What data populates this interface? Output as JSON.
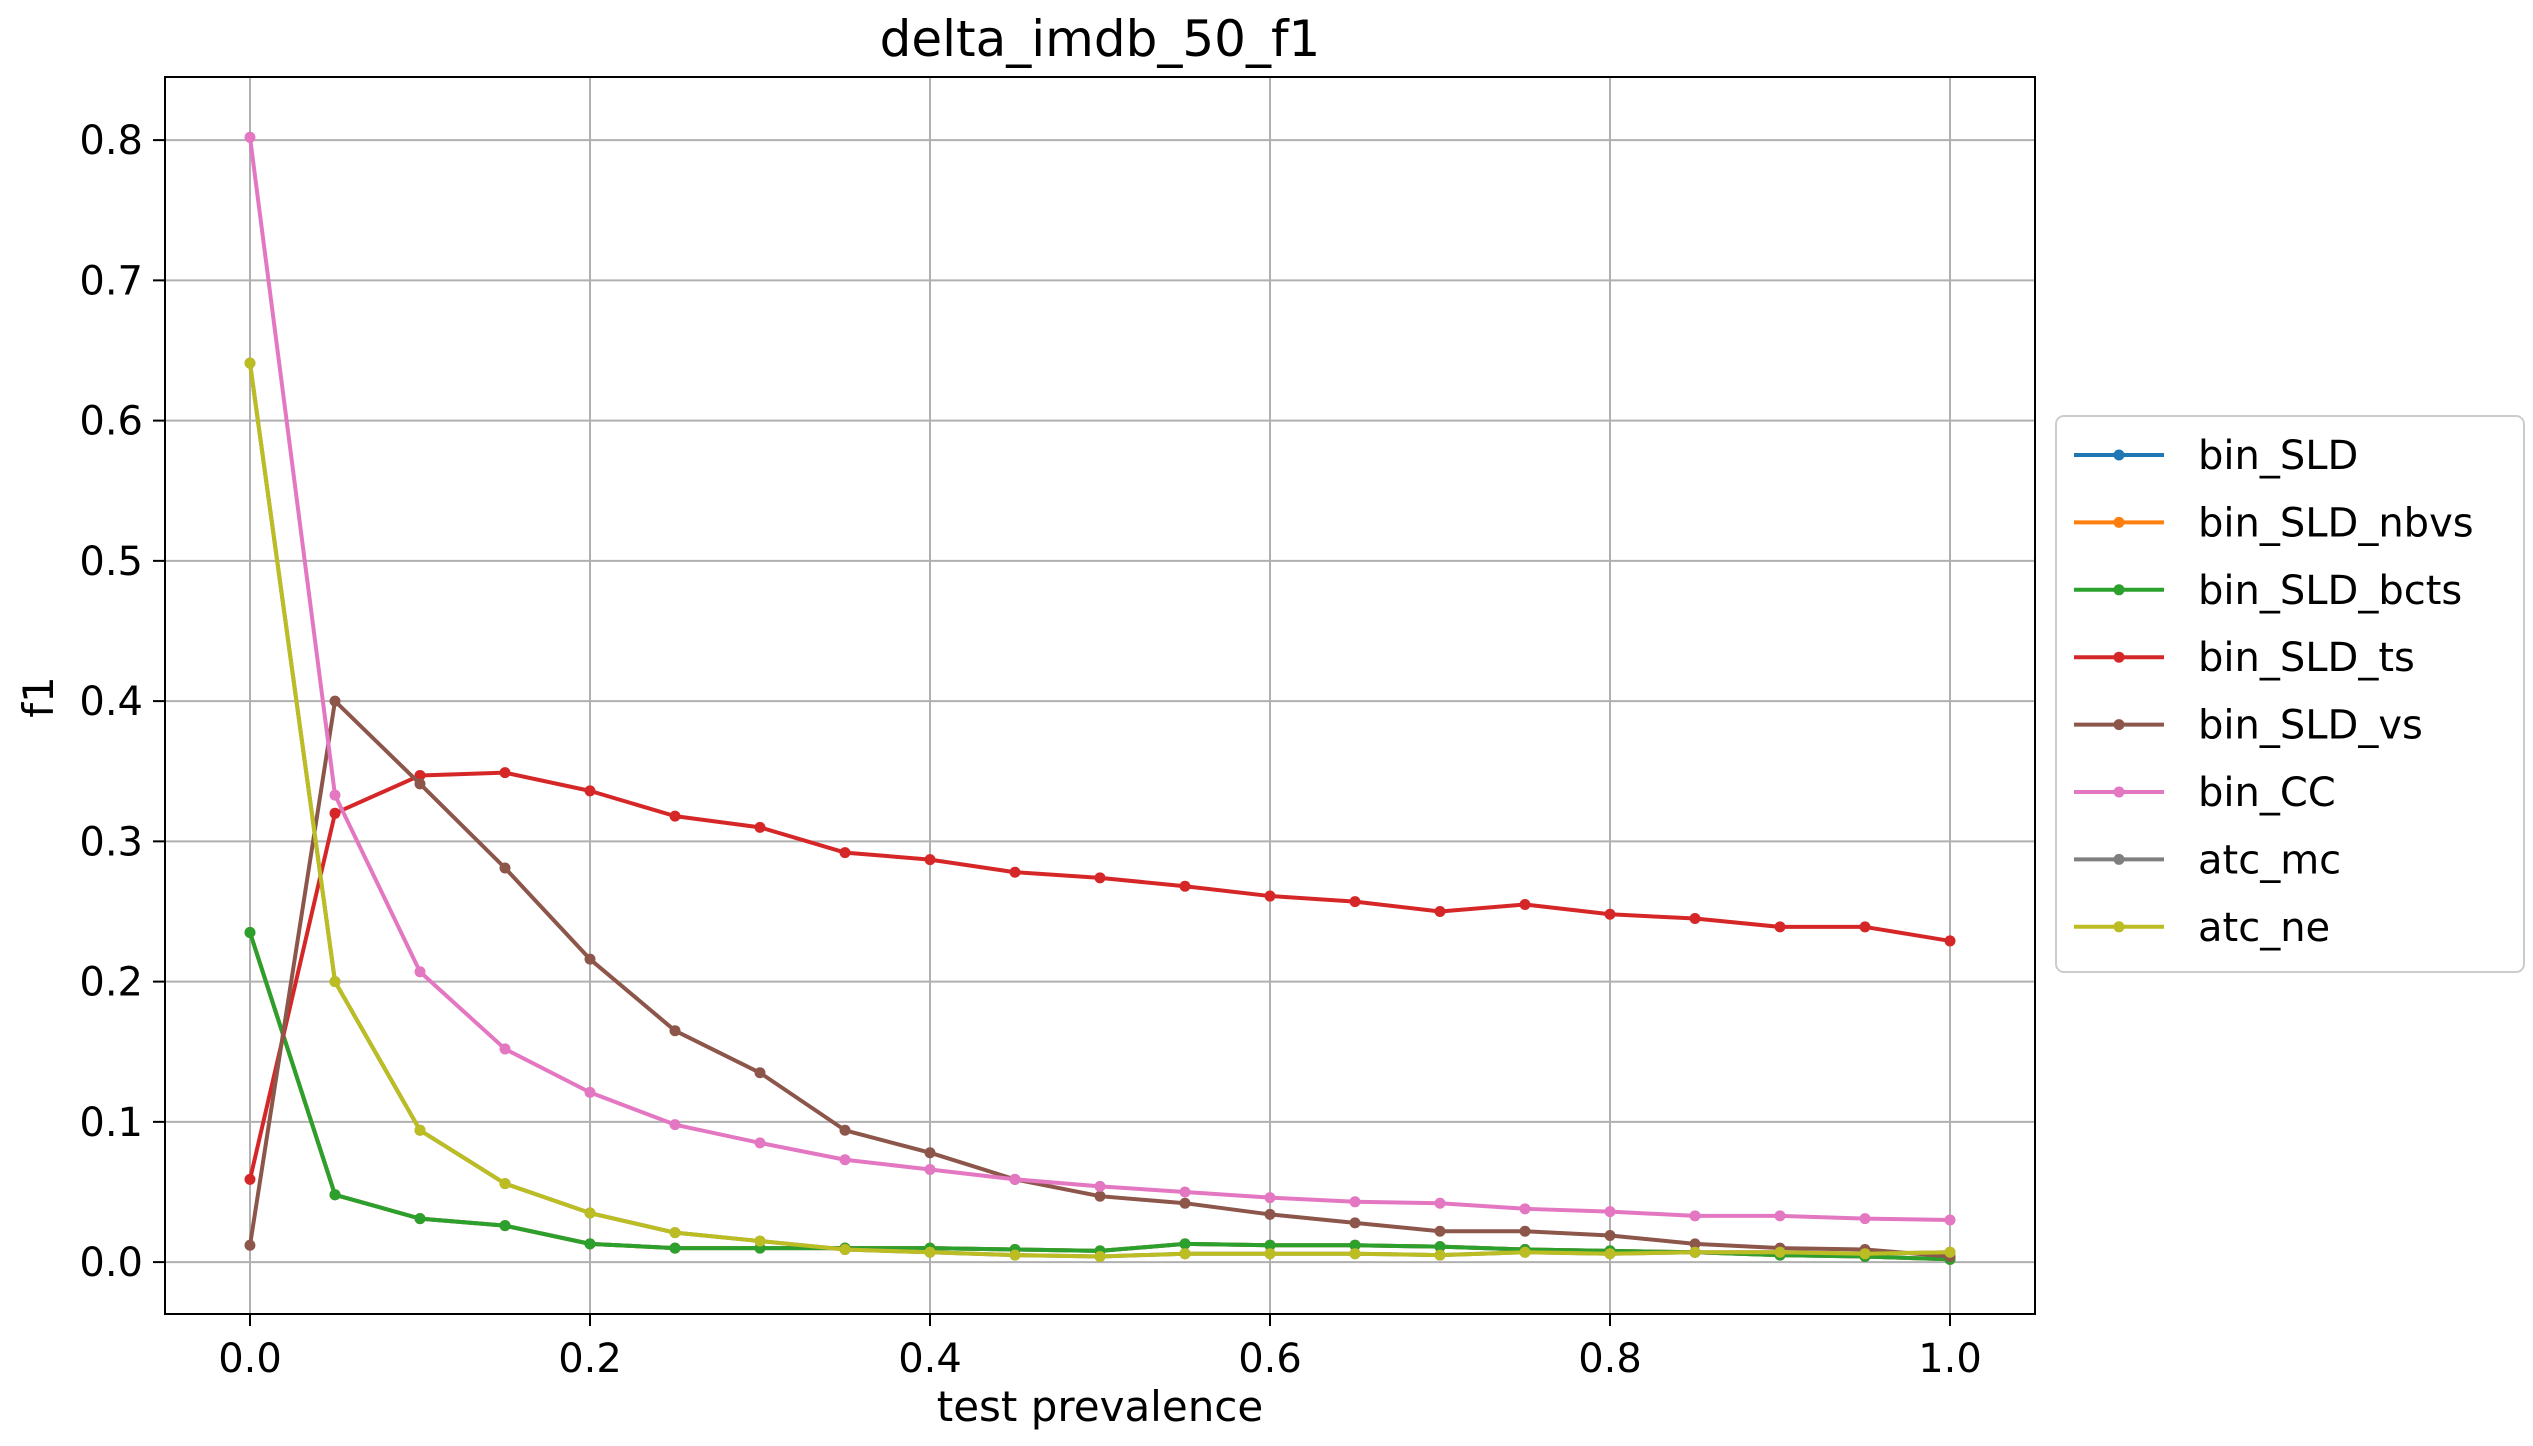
{
  "chart_data": {
    "type": "line",
    "title": "delta_imdb_50_f1",
    "xlabel": "test prevalence",
    "ylabel": "f1",
    "xlim": [
      -0.05,
      1.05
    ],
    "ylim": [
      -0.037,
      0.845
    ],
    "xticks": [
      0.0,
      0.2,
      0.4,
      0.6,
      0.8,
      1.0
    ],
    "xtick_labels": [
      "0.0",
      "0.2",
      "0.4",
      "0.6",
      "0.8",
      "1.0"
    ],
    "yticks": [
      0.0,
      0.1,
      0.2,
      0.3,
      0.4,
      0.5,
      0.6,
      0.7,
      0.8
    ],
    "ytick_labels": [
      "0.0",
      "0.1",
      "0.2",
      "0.3",
      "0.4",
      "0.5",
      "0.6",
      "0.7",
      "0.8"
    ],
    "grid": true,
    "legend_position": "outside-right",
    "x": [
      0.0,
      0.05,
      0.1,
      0.15,
      0.2,
      0.25,
      0.3,
      0.35,
      0.4,
      0.45,
      0.5,
      0.55,
      0.6,
      0.65,
      0.7,
      0.75,
      0.8,
      0.85,
      0.9,
      0.95,
      1.0
    ],
    "series": [
      {
        "name": "bin_SLD",
        "color": "#1f77b4",
        "values": [
          0.235,
          0.048,
          0.031,
          0.026,
          0.013,
          0.01,
          0.01,
          0.01,
          0.01,
          0.009,
          0.008,
          0.013,
          0.012,
          0.012,
          0.011,
          0.009,
          0.008,
          0.007,
          0.005,
          0.004,
          0.002
        ]
      },
      {
        "name": "bin_SLD_nbvs",
        "color": "#ff7f0e",
        "values": [
          0.235,
          0.048,
          0.031,
          0.026,
          0.013,
          0.01,
          0.01,
          0.01,
          0.01,
          0.009,
          0.008,
          0.013,
          0.012,
          0.012,
          0.011,
          0.009,
          0.008,
          0.007,
          0.005,
          0.004,
          0.002
        ]
      },
      {
        "name": "bin_SLD_bcts",
        "color": "#2ca02c",
        "values": [
          0.235,
          0.048,
          0.031,
          0.026,
          0.013,
          0.01,
          0.01,
          0.01,
          0.01,
          0.009,
          0.008,
          0.013,
          0.012,
          0.012,
          0.011,
          0.009,
          0.008,
          0.007,
          0.005,
          0.004,
          0.002
        ]
      },
      {
        "name": "bin_SLD_ts",
        "color": "#d62728",
        "values": [
          0.059,
          0.32,
          0.347,
          0.349,
          0.336,
          0.318,
          0.31,
          0.292,
          0.287,
          0.278,
          0.274,
          0.268,
          0.261,
          0.257,
          0.25,
          0.255,
          0.248,
          0.245,
          0.239,
          0.239,
          0.229
        ]
      },
      {
        "name": "bin_SLD_vs",
        "color": "#8c564b",
        "values": [
          0.012,
          0.4,
          0.341,
          0.281,
          0.216,
          0.165,
          0.135,
          0.094,
          0.078,
          0.059,
          0.047,
          0.042,
          0.034,
          0.028,
          0.022,
          0.022,
          0.019,
          0.013,
          0.01,
          0.009,
          0.004
        ]
      },
      {
        "name": "bin_CC",
        "color": "#e377c2",
        "values": [
          0.802,
          0.333,
          0.207,
          0.152,
          0.121,
          0.098,
          0.085,
          0.073,
          0.066,
          0.059,
          0.054,
          0.05,
          0.046,
          0.043,
          0.042,
          0.038,
          0.036,
          0.033,
          0.033,
          0.031,
          0.03
        ]
      },
      {
        "name": "atc_mc",
        "color": "#7f7f7f",
        "values": [
          0.641,
          0.2,
          0.094,
          0.056,
          0.035,
          0.021,
          0.015,
          0.009,
          0.007,
          0.005,
          0.004,
          0.006,
          0.006,
          0.006,
          0.005,
          0.007,
          0.006,
          0.007,
          0.007,
          0.006,
          0.007
        ]
      },
      {
        "name": "atc_ne",
        "color": "#bcbd22",
        "values": [
          0.641,
          0.2,
          0.094,
          0.056,
          0.035,
          0.021,
          0.015,
          0.009,
          0.007,
          0.005,
          0.004,
          0.006,
          0.006,
          0.006,
          0.005,
          0.007,
          0.006,
          0.007,
          0.007,
          0.006,
          0.007
        ]
      }
    ]
  }
}
